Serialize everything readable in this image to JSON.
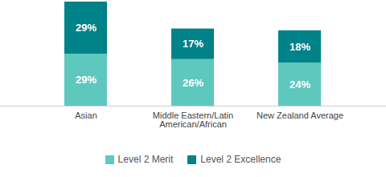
{
  "chart_data": {
    "type": "bar",
    "stacked": true,
    "data_labels": true,
    "tick_labels": "x",
    "grid": false,
    "legend": "bottom",
    "categories": [
      "Asian",
      "Middle Eastern/Latin American/African",
      "New Zealand Average"
    ],
    "series": [
      {
        "name": "Level 2 Merit",
        "color": "#5ec8bf",
        "values": [
          29,
          26,
          24
        ],
        "value_labels": [
          "29%",
          "26%",
          "24%"
        ]
      },
      {
        "name": "Level 2 Excellence",
        "color": "#008289",
        "values": [
          29,
          17,
          18
        ],
        "value_labels": [
          "29%",
          "17%",
          "18%"
        ]
      }
    ],
    "ylim": [
      0,
      58
    ]
  }
}
